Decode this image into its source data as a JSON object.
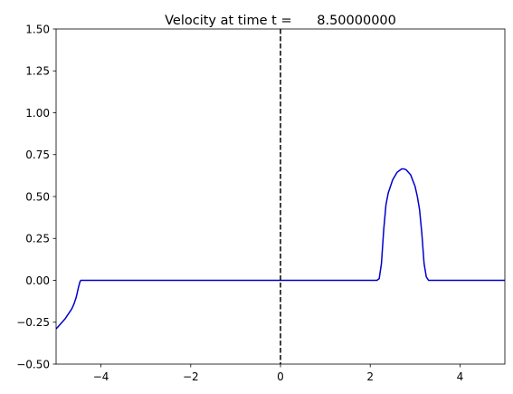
{
  "chart_data": {
    "type": "line",
    "title": "Velocity at time t =      8.50000000",
    "xlim": [
      -5,
      5
    ],
    "ylim": [
      -0.5,
      1.5
    ],
    "x_ticks": [
      -4,
      -2,
      0,
      2,
      4
    ],
    "x_tick_labels": [
      "−4",
      "−2",
      "0",
      "2",
      "4"
    ],
    "y_ticks": [
      -0.5,
      -0.25,
      0.0,
      0.25,
      0.5,
      0.75,
      1.0,
      1.25,
      1.5
    ],
    "y_tick_labels": [
      "−0.50",
      "−0.25",
      "0.00",
      "0.25",
      "0.50",
      "0.75",
      "1.00",
      "1.25",
      "1.50"
    ],
    "grid": false,
    "vertical_line": {
      "x": 0,
      "style": "dashed",
      "color": "#000000"
    },
    "series": [
      {
        "color": "#0000cc",
        "x": [
          -5.0,
          -4.9,
          -4.8,
          -4.75,
          -4.7,
          -4.65,
          -4.6,
          -4.55,
          -4.5,
          -4.47,
          -4.45,
          -4.4,
          -4.0,
          -2.0,
          0.0,
          2.0,
          2.15,
          2.2,
          2.25,
          2.3,
          2.35,
          2.4,
          2.5,
          2.6,
          2.7,
          2.75,
          2.8,
          2.9,
          3.0,
          3.05,
          3.1,
          3.15,
          3.2,
          3.25,
          3.3,
          3.35,
          3.5,
          4.0,
          5.0
        ],
        "y": [
          -0.29,
          -0.26,
          -0.23,
          -0.21,
          -0.19,
          -0.17,
          -0.14,
          -0.1,
          -0.04,
          -0.01,
          0.0,
          0.0,
          0.0,
          0.0,
          0.0,
          0.0,
          0.0,
          0.01,
          0.1,
          0.3,
          0.45,
          0.52,
          0.6,
          0.645,
          0.665,
          0.665,
          0.66,
          0.63,
          0.56,
          0.5,
          0.42,
          0.28,
          0.1,
          0.02,
          0.0,
          0.0,
          0.0,
          0.0,
          0.0
        ]
      }
    ]
  }
}
